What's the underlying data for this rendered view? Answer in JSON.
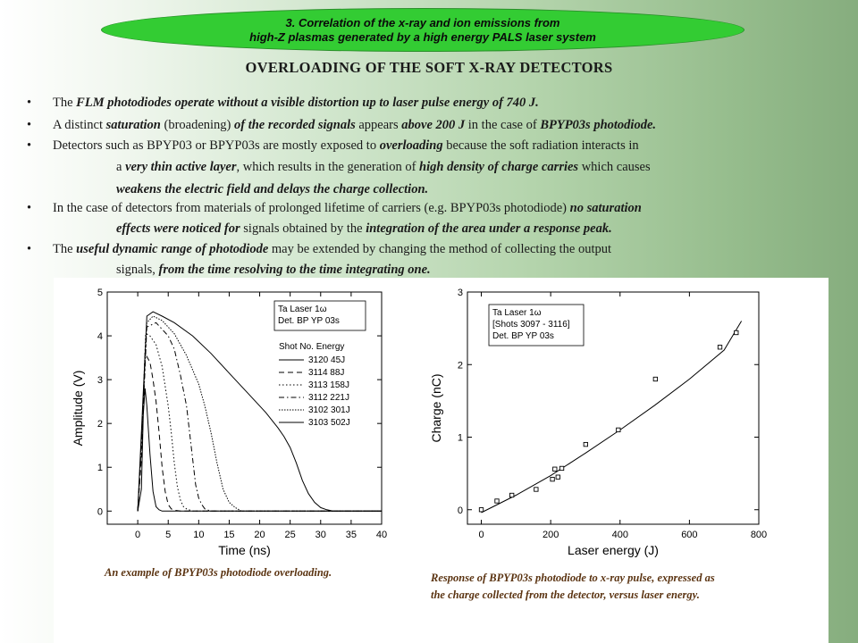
{
  "banner": {
    "line1": "3. Correlation of the x-ray and ion emissions from",
    "line2": "high-Z plasmas generated by a high energy PALS laser system"
  },
  "title": "OVERLOADING OF THE SOFT X-RAY DETECTORS",
  "bullets": [
    {
      "segments": [
        {
          "t": "The ",
          "s": ""
        },
        {
          "t": "FLM photodiodes operate without a visible distortion up to laser pulse energy of 740 J.",
          "s": "bi"
        }
      ]
    },
    {
      "segments": [
        {
          "t": "A distinct ",
          "s": ""
        },
        {
          "t": "saturation",
          "s": "bi"
        },
        {
          "t": " (broadening) ",
          "s": ""
        },
        {
          "t": "of the recorded signals",
          "s": "bi"
        },
        {
          "t": " appears ",
          "s": ""
        },
        {
          "t": "above 200 J",
          "s": "bi"
        },
        {
          "t": " in the case of ",
          "s": ""
        },
        {
          "t": "BPYP03s photodiode.",
          "s": "bi"
        }
      ]
    },
    {
      "segments": [
        {
          "t": "Detectors such as BPYP03 or BPYP03s are mostly exposed to ",
          "s": ""
        },
        {
          "t": "overloading",
          "s": "bi"
        },
        {
          "t": " because the soft radiation interacts in",
          "s": ""
        }
      ]
    },
    {
      "segments": [
        {
          "t": "a ",
          "s": ""
        },
        {
          "t": "very thin active layer",
          "s": "bi"
        },
        {
          "t": ", which results in the generation of ",
          "s": ""
        },
        {
          "t": "high density of charge carries",
          "s": "bi"
        },
        {
          "t": " which causes",
          "s": ""
        }
      ]
    },
    {
      "segments": [
        {
          "t": "weakens the electric field and delays the charge collection.",
          "s": "bi"
        }
      ]
    },
    {
      "segments": [
        {
          "t": "In the case of detectors from materials of prolonged lifetime of carriers (e.g. BPYP03s photodiode) ",
          "s": ""
        },
        {
          "t": "no saturation",
          "s": "bi"
        }
      ]
    },
    {
      "segments": [
        {
          "t": "effects were noticed for",
          "s": "bi"
        },
        {
          "t": " signals obtained by the ",
          "s": ""
        },
        {
          "t": "integration of the area under a response peak.",
          "s": "bi"
        }
      ]
    },
    {
      "segments": [
        {
          "t": "The ",
          "s": ""
        },
        {
          "t": "useful dynamic range of photodiode",
          "s": "bi"
        },
        {
          "t": " may be extended by changing the method of collecting the output",
          "s": ""
        }
      ]
    },
    {
      "segments": [
        {
          "t": "signals, ",
          "s": ""
        },
        {
          "t": "from the time resolving to the time integrating one.",
          "s": "bi"
        }
      ]
    }
  ],
  "captions": {
    "left": "An example of BPYP03s photodiode overloading.",
    "right_line1": "Response of BPYP03s photodiode to x-ray pulse, expressed as",
    "right_line2": "the charge collected from the detector, versus laser energy."
  },
  "chart_data": [
    {
      "type": "line",
      "xlabel": "Time (ns)",
      "ylabel": "Amplitude (V)",
      "xlim": [
        -5,
        40
      ],
      "ylim": [
        -0.3,
        5
      ],
      "xticks": [
        0,
        5,
        10,
        15,
        20,
        25,
        30,
        35,
        40
      ],
      "yticks": [
        0,
        1,
        2,
        3,
        4,
        5
      ],
      "legend_box_lines": [
        "Ta    Laser 1ω",
        "Det. BP YP 03s"
      ],
      "legend_header": "Shot No.  Energy",
      "series": [
        {
          "name": "3120    45J",
          "dash": "solid",
          "x": [
            0,
            0.6,
            0.9,
            1.2,
            1.5,
            2,
            2.5,
            3,
            3.5,
            4,
            5,
            6,
            40
          ],
          "y": [
            0,
            0.5,
            2.2,
            2.8,
            2.4,
            1.3,
            0.45,
            0.1,
            0.03,
            0,
            0,
            0,
            0
          ]
        },
        {
          "name": "3114    88J",
          "dash": "dash",
          "x": [
            0,
            0.7,
            1.2,
            2,
            2.5,
            3,
            3.5,
            4,
            4.5,
            5,
            5.5,
            6,
            7,
            40
          ],
          "y": [
            0,
            1.4,
            3.6,
            3.4,
            3.0,
            2.5,
            1.8,
            1.0,
            0.45,
            0.15,
            0.05,
            0.02,
            0,
            0
          ]
        },
        {
          "name": "3113   158J",
          "dash": "dot",
          "x": [
            0,
            0.7,
            1.3,
            2,
            3,
            4,
            5,
            5.5,
            6,
            6.5,
            7,
            7.5,
            8,
            9,
            40
          ],
          "y": [
            0,
            1.8,
            4.05,
            4.0,
            3.8,
            3.3,
            2.4,
            1.8,
            1.1,
            0.55,
            0.25,
            0.1,
            0.05,
            0,
            0
          ]
        },
        {
          "name": "3112   221J",
          "dash": "dashdot",
          "x": [
            0,
            0.8,
            1.5,
            3,
            5,
            6,
            7,
            8,
            8.5,
            9,
            9.5,
            10,
            10.5,
            11,
            12,
            40
          ],
          "y": [
            0,
            2.0,
            4.2,
            4.3,
            4.0,
            3.7,
            3.1,
            2.4,
            1.8,
            1.2,
            0.6,
            0.3,
            0.15,
            0.05,
            0,
            0
          ]
        },
        {
          "name": "3102   301J",
          "dash": "shortdot",
          "x": [
            0,
            0.8,
            1.5,
            2.5,
            4,
            6,
            8,
            10,
            11,
            12,
            13,
            14,
            15,
            16,
            17,
            40
          ],
          "y": [
            0,
            2.2,
            4.3,
            4.45,
            4.35,
            4.05,
            3.55,
            2.9,
            2.4,
            1.8,
            1.1,
            0.5,
            0.2,
            0.08,
            0,
            0
          ]
        },
        {
          "name": "3103   502J",
          "dash": "solid",
          "x": [
            0,
            0.8,
            1.5,
            2.5,
            4,
            6,
            9,
            12,
            15,
            18,
            21,
            23,
            24,
            25,
            26,
            27,
            28,
            29,
            30,
            31,
            32,
            40
          ],
          "y": [
            0,
            2.4,
            4.45,
            4.55,
            4.45,
            4.3,
            4.0,
            3.6,
            3.15,
            2.7,
            2.25,
            1.9,
            1.7,
            1.45,
            1.1,
            0.7,
            0.4,
            0.2,
            0.08,
            0.03,
            0,
            0
          ]
        }
      ]
    },
    {
      "type": "scatter",
      "xlabel": "Laser energy (J)",
      "ylabel": "Charge (nC)",
      "xlim": [
        -40,
        800
      ],
      "ylim": [
        -0.2,
        3
      ],
      "xticks": [
        0,
        200,
        400,
        600,
        800
      ],
      "yticks": [
        0,
        1,
        2,
        3
      ],
      "legend_box_lines": [
        "Ta      Laser 1ω",
        "[Shots 3097 - 3116]",
        "Det. BP YP 03s"
      ],
      "points": {
        "x": [
          0,
          45,
          88,
          158,
          205,
          212,
          221,
          232,
          301,
          395,
          502,
          688,
          735
        ],
        "y": [
          0.0,
          0.12,
          0.2,
          0.28,
          0.42,
          0.56,
          0.45,
          0.57,
          0.9,
          1.1,
          1.8,
          2.24,
          2.44
        ]
      },
      "fit_line": {
        "x": [
          0,
          100,
          200,
          300,
          400,
          500,
          600,
          700,
          750
        ],
        "y": [
          -0.04,
          0.2,
          0.47,
          0.78,
          1.1,
          1.44,
          1.8,
          2.2,
          2.6
        ]
      }
    }
  ]
}
